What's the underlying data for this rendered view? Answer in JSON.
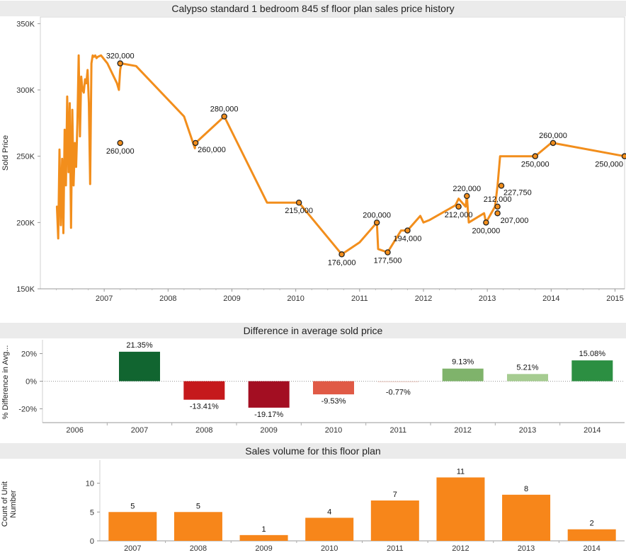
{
  "charts": {
    "price_title": "Calypso standard 1 bedroom 845 sf floor plan sales price history",
    "diff_title": "Difference in average sold price",
    "volume_title": "Sales volume for this floor plan"
  },
  "chart_data": [
    {
      "type": "line",
      "title": "Calypso standard 1 bedroom 845 sf floor plan sales price history",
      "ylabel": "Sold Price",
      "xlabel": "",
      "ylim": [
        150000,
        355000
      ],
      "xlim": [
        2006.0,
        2015.15
      ],
      "x_ticks": [
        2007,
        2008,
        2009,
        2010,
        2011,
        2012,
        2013,
        2014,
        2015
      ],
      "y_ticks": [
        150000,
        200000,
        250000,
        300000,
        350000
      ],
      "y_tick_labels": [
        "150K",
        "200K",
        "250K",
        "300K",
        "350K"
      ],
      "color": "#f28e1c",
      "series": [
        {
          "x": [
            2006.26,
            2006.28,
            2006.3,
            2006.32,
            2006.34,
            2006.36,
            2006.38,
            2006.4,
            2006.42,
            2006.44,
            2006.46,
            2006.48,
            2006.5,
            2006.52,
            2006.54,
            2006.56,
            2006.58,
            2006.6,
            2006.62,
            2006.64,
            2006.66,
            2006.68,
            2006.7,
            2006.72,
            2006.74,
            2006.76,
            2006.78,
            2006.8,
            2006.82,
            2006.84,
            2006.86,
            2006.88,
            2006.9,
            2006.95,
            2007.05,
            2007.2,
            2007.23,
            2007.25,
            2007.27,
            2007.5,
            2008.25,
            2008.42,
            2008.43,
            2008.88,
            2009.55,
            2010.05,
            2010.72,
            2011.0,
            2011.27,
            2011.29,
            2011.44,
            2011.47,
            2011.65,
            2011.75,
            2011.95,
            2012.0,
            2012.1,
            2012.5,
            2012.55,
            2012.66,
            2012.68,
            2012.71,
            2012.95,
            2012.98,
            2013.12,
            2013.16,
            2013.2,
            2013.22,
            2013.75,
            2014.0,
            2014.03,
            2015.15
          ],
          "y": [
            212000,
            188000,
            255000,
            198000,
            248000,
            192000,
            270000,
            228000,
            295000,
            238000,
            290000,
            196000,
            285000,
            228000,
            260000,
            242000,
            275000,
            326000,
            265000,
            310000,
            300000,
            298000,
            308000,
            305000,
            315000,
            290000,
            229000,
            320000,
            326000,
            325000,
            326000,
            324000,
            325000,
            326000,
            320000,
            305000,
            300000,
            315000,
            320000,
            318000,
            280000,
            256000,
            260000,
            280000,
            215000,
            215000,
            176000,
            185000,
            200000,
            180000,
            177500,
            180000,
            194000,
            194000,
            205000,
            200000,
            202000,
            213000,
            218000,
            212000,
            220000,
            200000,
            207000,
            200000,
            212000,
            227750,
            250000,
            250000,
            250000,
            260000,
            260000,
            250000
          ]
        },
        {
          "x": [
            2007.25,
            2007.25,
            2008.43,
            2008.88,
            2010.05,
            2010.72,
            2011.27,
            2011.44,
            2011.75,
            2012.55,
            2012.68,
            2012.98,
            2013.16,
            2013.16,
            2013.22,
            2013.75,
            2014.03,
            2015.15
          ],
          "y": [
            320000,
            260000,
            260000,
            280000,
            215000,
            176000,
            200000,
            177500,
            194000,
            212000,
            220000,
            200000,
            212000,
            207000,
            227750,
            250000,
            260000,
            250000
          ],
          "labels": [
            "320,000",
            "260,000",
            "260,000",
            "280,000",
            "215,000",
            "176,000",
            "200,000",
            "177,500",
            "194,000",
            "212,000",
            "220,000",
            "200,000",
            "212,000",
            "207,000",
            "227,750",
            "250,000",
            "260,000",
            "250,000"
          ],
          "label_pos": [
            "above",
            "below",
            "right-below",
            "above",
            "below",
            "below",
            "above",
            "below",
            "below",
            "below",
            "above",
            "below",
            "above",
            "right",
            "right-below",
            "below",
            "above",
            "below-left"
          ]
        }
      ]
    },
    {
      "type": "bar",
      "title": "Difference in average sold price",
      "ylabel": "% Difference in Avg...",
      "categories": [
        "2006",
        "2007",
        "2008",
        "2009",
        "2010",
        "2011",
        "2012",
        "2013",
        "2014"
      ],
      "values": [
        null,
        21.35,
        -13.41,
        -19.17,
        -9.53,
        -0.77,
        9.13,
        5.21,
        15.08
      ],
      "value_labels": [
        "",
        "21.35%",
        "-13.41%",
        "-19.17%",
        "-9.53%",
        "-0.77%",
        "9.13%",
        "5.21%",
        "15.08%"
      ],
      "colors": [
        "#ffffff",
        "#116530",
        "#c5191c",
        "#a30e22",
        "#e05a46",
        "#f0d8d2",
        "#7fb36b",
        "#a6cc91",
        "#2c8f42"
      ],
      "ylim": [
        -30,
        30
      ],
      "y_ticks": [
        -20,
        0,
        20
      ],
      "y_tick_labels": [
        "-20%",
        "0%",
        "20%"
      ]
    },
    {
      "type": "bar",
      "title": "Sales volume for this floor plan",
      "ylabel": "Count of Unit Number",
      "categories": [
        "2007",
        "2008",
        "2009",
        "2010",
        "2011",
        "2012",
        "2013",
        "2014"
      ],
      "values": [
        5,
        5,
        1,
        4,
        7,
        11,
        8,
        2
      ],
      "color": "#f7861a",
      "ylim": [
        0,
        14
      ],
      "y_ticks": [
        0,
        5,
        10
      ],
      "y_tick_labels": [
        "0",
        "5",
        "10"
      ]
    }
  ]
}
